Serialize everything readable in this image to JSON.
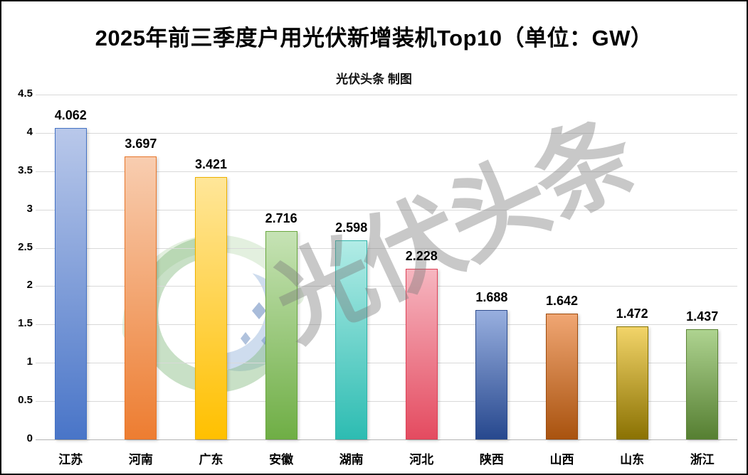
{
  "title": "2025年前三季度户用光伏新增装机Top10（单位：GW）",
  "subtitle": "光伏头条 制图",
  "watermark": {
    "text": "光伏头条"
  },
  "chart_data": {
    "type": "bar",
    "title": "2025年前三季度户用光伏新增装机Top10（单位：GW）",
    "subtitle": "光伏头条 制图",
    "unit": "GW",
    "categories": [
      "江苏",
      "河南",
      "广东",
      "安徽",
      "湖南",
      "河北",
      "陕西",
      "山西",
      "山东",
      "浙江"
    ],
    "values": [
      4.062,
      3.697,
      3.421,
      2.716,
      2.598,
      2.228,
      1.688,
      1.642,
      1.472,
      1.437
    ],
    "value_labels": [
      "4.062",
      "3.697",
      "3.421",
      "2.716",
      "2.598",
      "2.228",
      "1.688",
      "1.642",
      "1.472",
      "1.437"
    ],
    "ylim": [
      0,
      4.5
    ],
    "ytick_values": [
      0,
      0.5,
      1,
      1.5,
      2,
      2.5,
      3,
      3.5,
      4,
      4.5
    ],
    "ytick_labels": [
      "0",
      "0.5",
      "1",
      "1.5",
      "2",
      "2.5",
      "3",
      "3.5",
      "4",
      "4.5"
    ],
    "grid": true,
    "legend": false,
    "bar_colors": [
      {
        "top": "#b9c8ea",
        "bottom": "#4975c8",
        "border": "#4472c4"
      },
      {
        "top": "#f8cdb0",
        "bottom": "#ed7d31",
        "border": "#e8762a"
      },
      {
        "top": "#ffe699",
        "bottom": "#ffc000",
        "border": "#edb100"
      },
      {
        "top": "#c6e3b5",
        "bottom": "#6fae45",
        "border": "#6aa83f"
      },
      {
        "top": "#b2ece6",
        "bottom": "#2dbcb2",
        "border": "#30b5ab"
      },
      {
        "top": "#f6b6c0",
        "bottom": "#e44b60",
        "border": "#dd4257"
      },
      {
        "top": "#98afdf",
        "bottom": "#27488e",
        "border": "#2e4d8e"
      },
      {
        "top": "#f0a673",
        "bottom": "#a9530f",
        "border": "#9c4a0c"
      },
      {
        "top": "#f2d469",
        "bottom": "#8b7203",
        "border": "#817000"
      },
      {
        "top": "#aed390",
        "bottom": "#567f32",
        "border": "#5b8234"
      }
    ],
    "gridline_color": "#d9d9d9",
    "axis_line_color": "#b3b3b3",
    "watermark_text": "光伏头条"
  }
}
